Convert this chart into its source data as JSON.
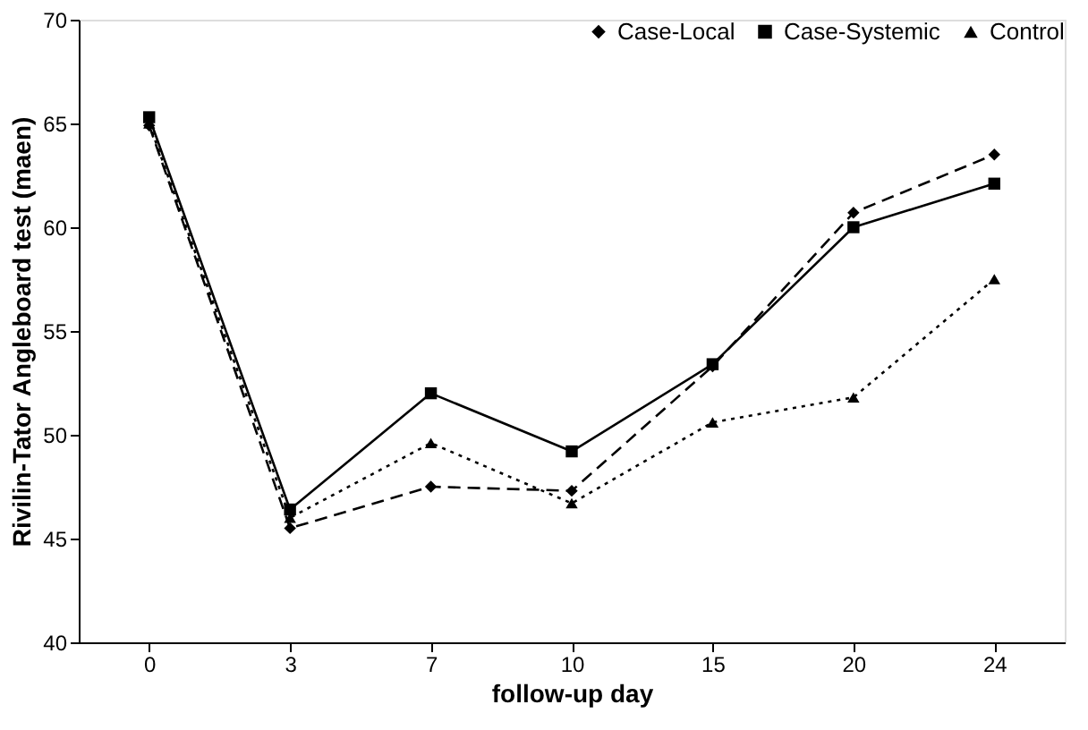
{
  "chart_data": {
    "type": "line",
    "xlabel": "follow-up day",
    "ylabel": "Rivilin-Tator Angleboard test (maen)",
    "categories": [
      "0",
      "3",
      "7",
      "10",
      "15",
      "20",
      "24"
    ],
    "series": [
      {
        "name": "Case-Local",
        "color": "#000000",
        "marker": "diamond",
        "line_style": "dashed",
        "values": [
          64.9,
          45.5,
          47.5,
          47.3,
          53.3,
          60.7,
          63.5
        ]
      },
      {
        "name": "Case-Systemic",
        "color": "#000000",
        "marker": "square",
        "line_style": "solid",
        "values": [
          65.3,
          46.4,
          52.0,
          49.2,
          53.4,
          60.0,
          62.1
        ]
      },
      {
        "name": "Control",
        "color": "#000000",
        "marker": "triangle",
        "line_style": "dotted",
        "values": [
          65.0,
          46.0,
          49.6,
          46.7,
          50.6,
          51.8,
          57.5
        ]
      }
    ],
    "ylim": [
      40,
      70
    ],
    "yticks": [
      40,
      45,
      50,
      55,
      60,
      65,
      70
    ],
    "grid": false,
    "legend": "top right"
  }
}
